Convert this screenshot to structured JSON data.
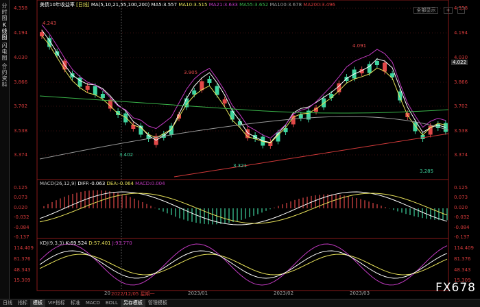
{
  "side_tabs": [
    "分时图",
    "K线图",
    "闪电图",
    "合约资料"
  ],
  "main_header": {
    "title": "美债10年收益率",
    "period": "[日线]",
    "ma_params": "MA(5,10,21,55,100,200)",
    "ma5": "MA5:3.557",
    "ma10": "MA10:3.515",
    "ma21": "MA21:3.633",
    "ma55": "MA55:3.652",
    "ma100": "MA100:3.678",
    "ma200": "MA200:3.496"
  },
  "price_axis": [
    "4.358",
    "4.194",
    "4.030",
    "3.866",
    "3.702",
    "3.538",
    "3.374"
  ],
  "price_axis_right": [
    "4.358",
    "4.194",
    "4.030",
    "3.866",
    "3.702",
    "3.538",
    "3.374"
  ],
  "current_price": "4.022",
  "annotations": [
    "4.243",
    "3.905",
    "3.402",
    "3.321",
    "4.091",
    "3.285"
  ],
  "macd_header": {
    "params": "MACD(26,12,9)",
    "diff": "DIFF:-0.063",
    "dea": "DEA:-0.064",
    "macd": "MACD:0.004"
  },
  "macd_axis": [
    "0.125",
    "0.073",
    "0.020",
    "-0.032",
    "-0.084",
    "-0.137"
  ],
  "kdj_header": {
    "params": "KDJ(9,3,3)",
    "k": "K:69.524",
    "d": "D:57.401",
    "j": "J:93.770"
  },
  "kdj_axis": [
    "114.409",
    "81.376",
    "48.343",
    "15.309"
  ],
  "date_labels": [
    "2022/12/05 星期一",
    "2023/01",
    "2023/02",
    "2023/03"
  ],
  "date_prefix": "20",
  "controls": [
    "全部显示",
    "+",
    "-"
  ],
  "toolbar": [
    "日线",
    "指标",
    "模板",
    "VIF指标",
    "标准",
    "MACD",
    "BOLL",
    "另存模板",
    "管理模板"
  ],
  "toolbar_active": "模板",
  "watermark": "FX678",
  "colors": {
    "up": "#3fd6a0",
    "down": "#e24848",
    "ma5": "#ffffff",
    "ma10": "#e8e25a",
    "ma21": "#c33ac3",
    "ma55": "#3ab54a",
    "ma100": "#9a9a9a",
    "ma200": "#d43a3a"
  }
}
